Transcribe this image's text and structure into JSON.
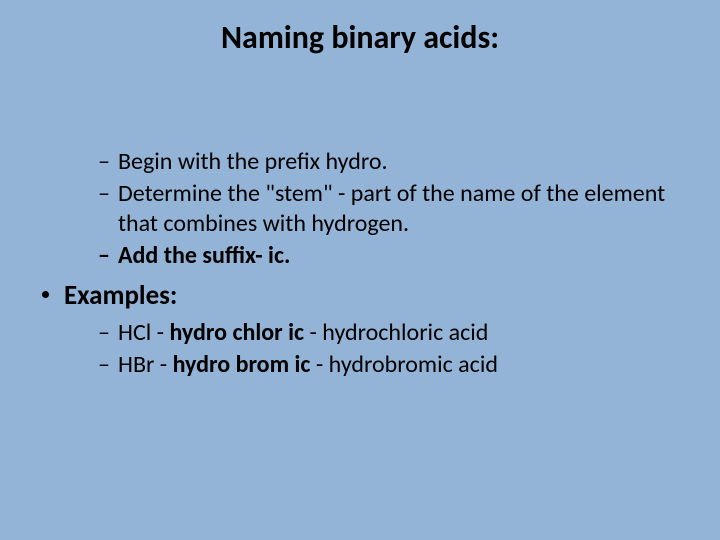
{
  "colors": {
    "background": "#93b4d6",
    "text": "#000000"
  },
  "typography": {
    "family": "Calibri",
    "title_size_pt": 32,
    "lvl1_size_pt": 27,
    "lvl2_size_pt": 24
  },
  "slide": {
    "title": "Naming binary acids:",
    "rules": [
      {
        "dash": "–",
        "text": "Begin with the prefix hydro.",
        "bold": false
      },
      {
        "dash": "–",
        "text": "Determine the \"stem\" - part of the name of the element that combines with hydrogen.",
        "bold": false
      },
      {
        "dash": "–",
        "text": "Add the suffix- ic.",
        "bold": true
      }
    ],
    "examples_label": {
      "bullet": "•",
      "text": "Examples:"
    },
    "examples": [
      {
        "dash": "–",
        "lead": "HCl - ",
        "mid_bold": "hydro chlor ic",
        "tail": " - hydrochloric acid"
      },
      {
        "dash": "–",
        "lead": "HBr - ",
        "mid_bold": "hydro brom ic",
        "tail": " - hydrobromic acid"
      }
    ]
  }
}
